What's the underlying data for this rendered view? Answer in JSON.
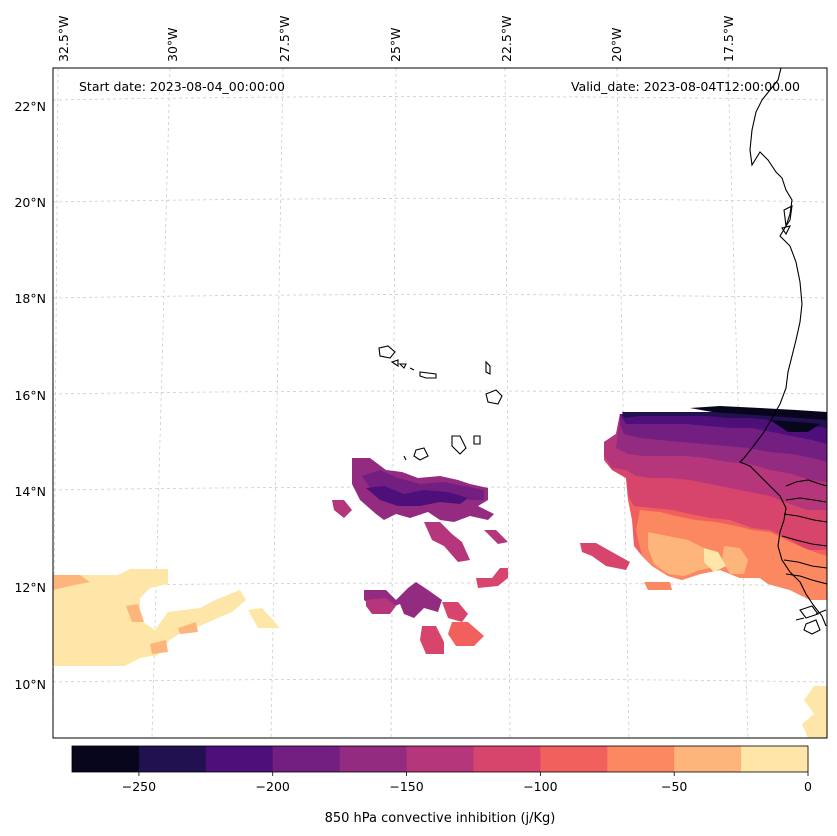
{
  "map": {
    "start_date": "Start date: 2023-08-04_00:00:00",
    "valid_date": "Valid_date: 2023-08-04T12:00:00.00",
    "lon_labels": [
      "32.5°W",
      "30°W",
      "27.5°W",
      "25°W",
      "22.5°W",
      "20°W",
      "17.5°W"
    ],
    "lat_labels": [
      "22°N",
      "20°N",
      "18°N",
      "16°N",
      "14°N",
      "12°N",
      "10°N"
    ]
  },
  "colorbar": {
    "label": "850 hPa convective inhibition (j/Kg)",
    "tick_labels": [
      "−250",
      "−200",
      "−150",
      "−100",
      "−50",
      "0"
    ],
    "levels": [
      -275,
      -250,
      -225,
      -200,
      -175,
      -150,
      -125,
      -100,
      -75,
      -50,
      -25,
      0
    ],
    "colors": [
      "#07061c",
      "#221150",
      "#4e0f7a",
      "#721f81",
      "#932b80",
      "#b5367a",
      "#d8456c",
      "#f1605d",
      "#fb8861",
      "#feb57c",
      "#fde6a7"
    ]
  }
}
